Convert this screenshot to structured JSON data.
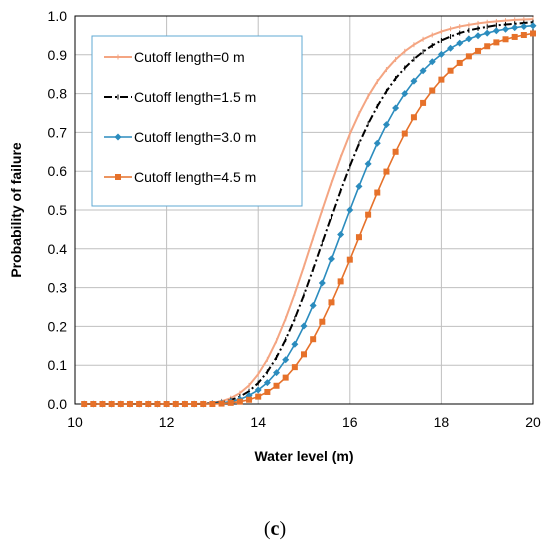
{
  "panel_label_open": "(",
  "panel_label_letter": "c",
  "panel_label_close": ")",
  "chart_data": {
    "type": "line",
    "xlabel": "Water level (m)",
    "ylabel": "Probability of failure",
    "xlim": [
      10,
      20
    ],
    "ylim": [
      0,
      1
    ],
    "x_ticks": [
      "10",
      "12",
      "14",
      "16",
      "18",
      "20"
    ],
    "y_ticks": [
      "0.0",
      "0.1",
      "0.2",
      "0.3",
      "0.4",
      "0.5",
      "0.6",
      "0.7",
      "0.8",
      "0.9",
      "1.0"
    ],
    "grid": true,
    "legend_position": "top-left",
    "x": [
      10.2,
      10.4,
      10.6,
      10.8,
      11.0,
      11.2,
      11.4,
      11.6,
      11.8,
      12.0,
      12.2,
      12.4,
      12.6,
      12.8,
      13.0,
      13.2,
      13.4,
      13.6,
      13.8,
      14.0,
      14.2,
      14.4,
      14.6,
      14.8,
      15.0,
      15.2,
      15.4,
      15.6,
      15.8,
      16.0,
      16.2,
      16.4,
      16.6,
      16.8,
      17.0,
      17.2,
      17.4,
      17.6,
      17.8,
      18.0,
      18.2,
      18.4,
      18.6,
      18.8,
      19.0,
      19.2,
      19.4,
      19.6,
      19.8,
      20.0
    ],
    "series": [
      {
        "name": "Cutoff length=0 m",
        "color": "#f4a582",
        "marker": "tick",
        "dash": "solid",
        "values": [
          0,
          0,
          0,
          0,
          0,
          0,
          0,
          0,
          0,
          0,
          0,
          0,
          0,
          0.001,
          0.003,
          0.007,
          0.015,
          0.028,
          0.048,
          0.077,
          0.115,
          0.163,
          0.22,
          0.285,
          0.355,
          0.428,
          0.5,
          0.57,
          0.636,
          0.696,
          0.748,
          0.793,
          0.831,
          0.862,
          0.888,
          0.909,
          0.926,
          0.94,
          0.951,
          0.96,
          0.967,
          0.973,
          0.977,
          0.981,
          0.984,
          0.986,
          0.988,
          0.99,
          0.991,
          0.992
        ]
      },
      {
        "name": "Cutoff length=1.5 m",
        "color": "#000000",
        "marker": "tick",
        "dash": "dashdot",
        "values": [
          0,
          0,
          0,
          0,
          0,
          0,
          0,
          0,
          0,
          0,
          0,
          0,
          0,
          0,
          0.002,
          0.005,
          0.01,
          0.019,
          0.033,
          0.054,
          0.083,
          0.12,
          0.166,
          0.22,
          0.281,
          0.347,
          0.415,
          0.483,
          0.55,
          0.613,
          0.671,
          0.722,
          0.767,
          0.806,
          0.839,
          0.866,
          0.889,
          0.908,
          0.924,
          0.937,
          0.947,
          0.956,
          0.963,
          0.968,
          0.972,
          0.976,
          0.978,
          0.98,
          0.982,
          0.984
        ]
      },
      {
        "name": "Cutoff length=3.0 m",
        "color": "#2b8cbe",
        "marker": "diamond",
        "dash": "solid",
        "values": [
          0,
          0,
          0,
          0,
          0,
          0,
          0,
          0,
          0,
          0,
          0,
          0,
          0,
          0,
          0.001,
          0.003,
          0.006,
          0.012,
          0.022,
          0.036,
          0.055,
          0.081,
          0.114,
          0.154,
          0.201,
          0.254,
          0.312,
          0.374,
          0.437,
          0.5,
          0.561,
          0.619,
          0.672,
          0.72,
          0.763,
          0.8,
          0.832,
          0.859,
          0.882,
          0.901,
          0.917,
          0.93,
          0.941,
          0.949,
          0.956,
          0.962,
          0.966,
          0.97,
          0.973,
          0.975
        ]
      },
      {
        "name": "Cutoff length=4.5 m",
        "color": "#e6712a",
        "marker": "square",
        "dash": "solid",
        "values": [
          0,
          0,
          0,
          0,
          0,
          0,
          0,
          0,
          0,
          0,
          0,
          0,
          0,
          0,
          0,
          0.001,
          0.003,
          0.006,
          0.011,
          0.019,
          0.031,
          0.047,
          0.068,
          0.095,
          0.128,
          0.167,
          0.212,
          0.262,
          0.316,
          0.372,
          0.43,
          0.488,
          0.545,
          0.599,
          0.65,
          0.697,
          0.739,
          0.776,
          0.808,
          0.836,
          0.859,
          0.879,
          0.896,
          0.91,
          0.922,
          0.932,
          0.94,
          0.946,
          0.951,
          0.955
        ]
      }
    ]
  }
}
